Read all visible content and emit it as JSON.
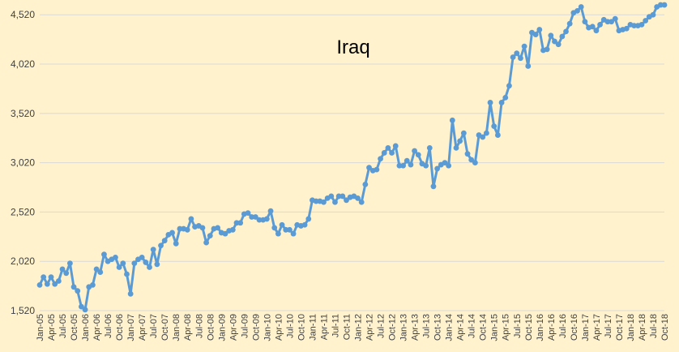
{
  "chart_data": {
    "type": "line",
    "title": "Iraq",
    "xlabel": "",
    "ylabel": "",
    "ylim": [
      1520,
      4670
    ],
    "yticks": [
      "1,520",
      "2,020",
      "2,520",
      "3,020",
      "3,520",
      "4,020",
      "4,520"
    ],
    "ytick_values": [
      1520,
      2020,
      2520,
      3020,
      3520,
      4020,
      4520
    ],
    "xtick_labels": [
      "Jan-05",
      "Apr-05",
      "Jul-05",
      "Oct-05",
      "Jan-06",
      "Apr-06",
      "Jul-06",
      "Oct-06",
      "Jan-07",
      "Apr-07",
      "Jul-07",
      "Oct-07",
      "Jan-08",
      "Apr-08",
      "Jul-08",
      "Oct-08",
      "Jan-09",
      "Apr-09",
      "Jul-09",
      "Oct-09",
      "Jan-10",
      "Apr-10",
      "Jul-10",
      "Oct-10",
      "Jan-11",
      "Apr-11",
      "Jul-11",
      "Oct-11",
      "Jan-12",
      "Apr-12",
      "Jul-12",
      "Oct-12",
      "Jan-13",
      "Apr-13",
      "Jul-13",
      "Oct-13",
      "Jan-14",
      "Apr-14",
      "Jul-14",
      "Oct-14",
      "Jan-15",
      "Apr-15",
      "Jul-15",
      "Oct-15",
      "Jan-16",
      "Apr-16",
      "Jul-16",
      "Oct-16",
      "Jan-17",
      "Apr-17",
      "Jul-17",
      "Oct-17",
      "Jan-18",
      "Apr-18",
      "Jul-18",
      "Oct-18"
    ],
    "grid": true,
    "legend": "none",
    "series": [
      {
        "color": "#5B9BD5",
        "values": [
          1780,
          1860,
          1790,
          1860,
          1790,
          1820,
          1940,
          1900,
          2000,
          1760,
          1720,
          1560,
          1530,
          1760,
          1780,
          1940,
          1910,
          2090,
          2020,
          2040,
          2060,
          1960,
          2000,
          1890,
          1690,
          2000,
          2040,
          2060,
          2010,
          1960,
          2140,
          1990,
          2180,
          2230,
          2290,
          2310,
          2200,
          2350,
          2350,
          2340,
          2450,
          2370,
          2380,
          2360,
          2210,
          2280,
          2350,
          2360,
          2310,
          2300,
          2330,
          2340,
          2410,
          2410,
          2500,
          2510,
          2470,
          2470,
          2440,
          2440,
          2450,
          2530,
          2360,
          2300,
          2390,
          2340,
          2340,
          2300,
          2390,
          2380,
          2390,
          2450,
          2640,
          2630,
          2630,
          2620,
          2660,
          2680,
          2620,
          2680,
          2680,
          2640,
          2670,
          2680,
          2660,
          2620,
          2800,
          2970,
          2940,
          2950,
          3060,
          3120,
          3170,
          3120,
          3190,
          2990,
          2990,
          3040,
          3000,
          3140,
          3100,
          3010,
          2990,
          3170,
          2780,
          2960,
          3000,
          3020,
          2990,
          3450,
          3170,
          3240,
          3320,
          3110,
          3050,
          3020,
          3300,
          3280,
          3320,
          3630,
          3390,
          3300,
          3630,
          3680,
          3800,
          4090,
          4130,
          4080,
          4200,
          4000,
          4340,
          4320,
          4370,
          4160,
          4170,
          4310,
          4250,
          4220,
          4300,
          4350,
          4430,
          4540,
          4560,
          4600,
          4450,
          4390,
          4400,
          4360,
          4420,
          4470,
          4450,
          4450,
          4480,
          4360,
          4370,
          4380,
          4420,
          4410,
          4410,
          4420,
          4460,
          4500,
          4520,
          4600,
          4620,
          4620
        ]
      }
    ]
  }
}
